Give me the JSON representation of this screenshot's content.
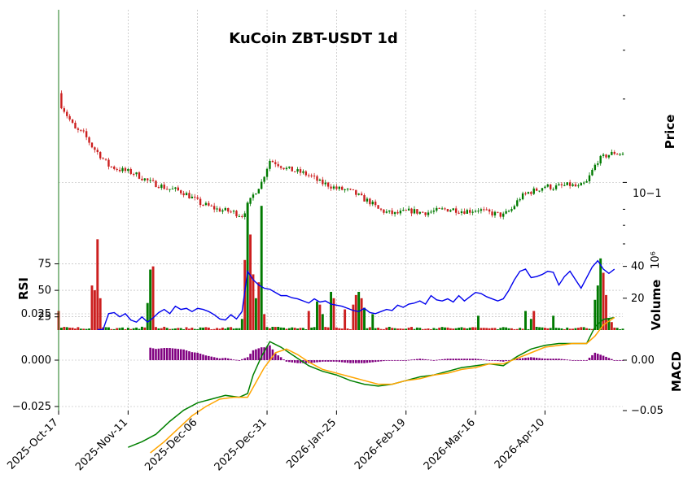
{
  "chart_data": {
    "type": "candlestick",
    "title": "KuCoin ZBT-USDT 1d",
    "x_tick_labels": [
      "2025-Oct-17",
      "2025-Nov-11",
      "2025-Dec-06",
      "2025-Dec-31",
      "2026-Jan-25",
      "2026-Feb-19",
      "2026-Mar-16",
      "2026-Apr-10"
    ],
    "grid": true,
    "panels": {
      "price": {
        "ylabel": "Price",
        "yscale": "log",
        "ytick_label": "10−1",
        "anchors": [
          [
            0,
            0.21
          ],
          [
            1,
            0.19
          ],
          [
            3,
            0.175
          ],
          [
            6,
            0.155
          ],
          [
            9,
            0.15
          ],
          [
            12,
            0.135
          ],
          [
            15,
            0.125
          ],
          [
            18,
            0.115
          ],
          [
            21,
            0.112
          ],
          [
            24,
            0.11
          ],
          [
            27,
            0.108
          ],
          [
            30,
            0.104
          ],
          [
            33,
            0.1
          ],
          [
            36,
            0.098
          ],
          [
            39,
            0.095
          ],
          [
            42,
            0.094
          ],
          [
            45,
            0.092
          ],
          [
            48,
            0.088
          ],
          [
            51,
            0.084
          ],
          [
            54,
            0.082
          ],
          [
            57,
            0.08
          ],
          [
            60,
            0.079
          ],
          [
            63,
            0.078
          ],
          [
            66,
            0.076
          ],
          [
            68,
            0.082
          ],
          [
            70,
            0.09
          ],
          [
            73,
            0.1
          ],
          [
            76,
            0.12
          ],
          [
            78,
            0.118
          ],
          [
            80,
            0.115
          ],
          [
            82,
            0.112
          ],
          [
            85,
            0.11
          ],
          [
            88,
            0.108
          ],
          [
            91,
            0.105
          ],
          [
            94,
            0.1
          ],
          [
            97,
            0.098
          ],
          [
            100,
            0.095
          ],
          [
            103,
            0.094
          ],
          [
            106,
            0.092
          ],
          [
            109,
            0.088
          ],
          [
            112,
            0.085
          ],
          [
            115,
            0.08
          ],
          [
            118,
            0.078
          ],
          [
            121,
            0.077
          ],
          [
            124,
            0.078
          ],
          [
            127,
            0.079
          ],
          [
            130,
            0.078
          ],
          [
            133,
            0.078
          ],
          [
            136,
            0.079
          ],
          [
            139,
            0.08
          ],
          [
            142,
            0.08
          ],
          [
            145,
            0.079
          ],
          [
            148,
            0.079
          ],
          [
            151,
            0.08
          ],
          [
            154,
            0.078
          ],
          [
            157,
            0.077
          ],
          [
            160,
            0.076
          ],
          [
            163,
            0.08
          ],
          [
            166,
            0.088
          ],
          [
            169,
            0.092
          ],
          [
            172,
            0.094
          ],
          [
            175,
            0.097
          ],
          [
            178,
            0.096
          ],
          [
            181,
            0.097
          ],
          [
            184,
            0.098
          ],
          [
            187,
            0.096
          ],
          [
            190,
            0.1
          ],
          [
            192,
            0.11
          ],
          [
            194,
            0.12
          ],
          [
            197,
            0.125
          ],
          [
            200,
            0.128
          ],
          [
            203,
            0.127
          ]
        ]
      },
      "volume": {
        "ylabel": "Volume",
        "ylabel_exponent": "10⁶",
        "yticks": [
          20,
          40
        ],
        "spikes": [
          [
            0,
            12,
            "red"
          ],
          [
            12,
            28,
            "red"
          ],
          [
            13,
            25,
            "red"
          ],
          [
            14,
            57,
            "red"
          ],
          [
            15,
            20,
            "red"
          ],
          [
            32,
            17,
            "green"
          ],
          [
            33,
            38,
            "green"
          ],
          [
            34,
            40,
            "red"
          ],
          [
            66,
            7,
            "green"
          ],
          [
            67,
            44,
            "red"
          ],
          [
            68,
            80,
            "green"
          ],
          [
            69,
            60,
            "red"
          ],
          [
            70,
            35,
            "red"
          ],
          [
            71,
            20,
            "green"
          ],
          [
            72,
            30,
            "red"
          ],
          [
            73,
            78,
            "green"
          ],
          [
            74,
            10,
            "red"
          ],
          [
            90,
            12,
            "red"
          ],
          [
            93,
            18,
            "green"
          ],
          [
            94,
            16,
            "red"
          ],
          [
            95,
            10,
            "green"
          ],
          [
            98,
            24,
            "green"
          ],
          [
            99,
            20,
            "red"
          ],
          [
            103,
            13,
            "red"
          ],
          [
            106,
            16,
            "red"
          ],
          [
            107,
            22,
            "red"
          ],
          [
            108,
            24,
            "green"
          ],
          [
            109,
            20,
            "red"
          ],
          [
            110,
            14,
            "green"
          ],
          [
            113,
            10,
            "green"
          ],
          [
            151,
            9,
            "green"
          ],
          [
            168,
            12,
            "green"
          ],
          [
            170,
            7,
            "green"
          ],
          [
            171,
            12,
            "red"
          ],
          [
            178,
            9,
            "green"
          ],
          [
            193,
            19,
            "green"
          ],
          [
            194,
            28,
            "green"
          ],
          [
            195,
            45,
            "green"
          ],
          [
            196,
            36,
            "red"
          ],
          [
            197,
            22,
            "red"
          ],
          [
            198,
            7,
            "green"
          ],
          [
            199,
            5,
            "red"
          ]
        ]
      },
      "rsi": {
        "ylabel": "RSI",
        "yticks": [
          25,
          50,
          75
        ],
        "series": [
          [
            14,
            13
          ],
          [
            16,
            13
          ],
          [
            18,
            28
          ],
          [
            20,
            29
          ],
          [
            22,
            25
          ],
          [
            24,
            28
          ],
          [
            26,
            22
          ],
          [
            28,
            20
          ],
          [
            30,
            25
          ],
          [
            32,
            20
          ],
          [
            34,
            24
          ],
          [
            36,
            29
          ],
          [
            38,
            32
          ],
          [
            40,
            28
          ],
          [
            42,
            35
          ],
          [
            44,
            32
          ],
          [
            46,
            33
          ],
          [
            48,
            30
          ],
          [
            50,
            33
          ],
          [
            52,
            32
          ],
          [
            54,
            30
          ],
          [
            56,
            27
          ],
          [
            58,
            23
          ],
          [
            60,
            22
          ],
          [
            62,
            27
          ],
          [
            64,
            23
          ],
          [
            66,
            30
          ],
          [
            68,
            68
          ],
          [
            70,
            60
          ],
          [
            72,
            55
          ],
          [
            74,
            52
          ],
          [
            76,
            51
          ],
          [
            78,
            48
          ],
          [
            80,
            45
          ],
          [
            82,
            45
          ],
          [
            84,
            43
          ],
          [
            86,
            42
          ],
          [
            88,
            40
          ],
          [
            90,
            38
          ],
          [
            92,
            42
          ],
          [
            94,
            39
          ],
          [
            96,
            40
          ],
          [
            98,
            37
          ],
          [
            100,
            36
          ],
          [
            102,
            35
          ],
          [
            104,
            33
          ],
          [
            106,
            31
          ],
          [
            108,
            30
          ],
          [
            110,
            33
          ],
          [
            112,
            29
          ],
          [
            114,
            28
          ],
          [
            116,
            30
          ],
          [
            118,
            32
          ],
          [
            120,
            31
          ],
          [
            122,
            36
          ],
          [
            124,
            34
          ],
          [
            126,
            37
          ],
          [
            128,
            38
          ],
          [
            130,
            40
          ],
          [
            132,
            37
          ],
          [
            134,
            45
          ],
          [
            136,
            41
          ],
          [
            138,
            40
          ],
          [
            140,
            42
          ],
          [
            142,
            39
          ],
          [
            144,
            45
          ],
          [
            146,
            40
          ],
          [
            148,
            44
          ],
          [
            150,
            48
          ],
          [
            152,
            47
          ],
          [
            154,
            44
          ],
          [
            156,
            42
          ],
          [
            158,
            40
          ],
          [
            160,
            42
          ],
          [
            162,
            50
          ],
          [
            164,
            60
          ],
          [
            166,
            68
          ],
          [
            168,
            70
          ],
          [
            170,
            62
          ],
          [
            172,
            63
          ],
          [
            174,
            65
          ],
          [
            176,
            68
          ],
          [
            178,
            67
          ],
          [
            180,
            55
          ],
          [
            182,
            63
          ],
          [
            184,
            68
          ],
          [
            186,
            60
          ],
          [
            188,
            52
          ],
          [
            190,
            62
          ],
          [
            192,
            72
          ],
          [
            194,
            78
          ],
          [
            196,
            70
          ],
          [
            198,
            66
          ],
          [
            200,
            70
          ]
        ]
      },
      "macd": {
        "ylabel": "MACD",
        "yticks_left": [
          "0.025",
          "0.000",
          "−0.025"
        ],
        "yticks_right": [
          "0.00",
          "−0.05"
        ],
        "macd_line": [
          [
            25,
            -0.047
          ],
          [
            30,
            -0.044
          ],
          [
            35,
            -0.04
          ],
          [
            40,
            -0.033
          ],
          [
            45,
            -0.027
          ],
          [
            50,
            -0.023
          ],
          [
            55,
            -0.021
          ],
          [
            60,
            -0.019
          ],
          [
            65,
            -0.02
          ],
          [
            68,
            -0.018
          ],
          [
            70,
            -0.008
          ],
          [
            73,
            0.002
          ],
          [
            76,
            0.01
          ],
          [
            80,
            0.007
          ],
          [
            85,
            0.002
          ],
          [
            90,
            -0.003
          ],
          [
            95,
            -0.006
          ],
          [
            100,
            -0.008
          ],
          [
            105,
            -0.011
          ],
          [
            110,
            -0.013
          ],
          [
            115,
            -0.014
          ],
          [
            120,
            -0.013
          ],
          [
            125,
            -0.011
          ],
          [
            130,
            -0.009
          ],
          [
            135,
            -0.008
          ],
          [
            140,
            -0.006
          ],
          [
            145,
            -0.004
          ],
          [
            150,
            -0.003
          ],
          [
            155,
            -0.002
          ],
          [
            160,
            -0.003
          ],
          [
            165,
            0.002
          ],
          [
            170,
            0.006
          ],
          [
            175,
            0.008
          ],
          [
            180,
            0.009
          ],
          [
            185,
            0.009
          ],
          [
            190,
            0.009
          ],
          [
            193,
            0.018
          ],
          [
            196,
            0.022
          ],
          [
            200,
            0.023
          ]
        ],
        "signal_line": [
          [
            33,
            -0.05
          ],
          [
            38,
            -0.044
          ],
          [
            43,
            -0.037
          ],
          [
            48,
            -0.03
          ],
          [
            53,
            -0.025
          ],
          [
            58,
            -0.021
          ],
          [
            63,
            -0.02
          ],
          [
            68,
            -0.02
          ],
          [
            71,
            -0.012
          ],
          [
            74,
            -0.004
          ],
          [
            78,
            0.004
          ],
          [
            82,
            0.006
          ],
          [
            86,
            0.003
          ],
          [
            90,
            -0.001
          ],
          [
            95,
            -0.005
          ],
          [
            100,
            -0.007
          ],
          [
            105,
            -0.009
          ],
          [
            110,
            -0.011
          ],
          [
            115,
            -0.013
          ],
          [
            120,
            -0.013
          ],
          [
            125,
            -0.011
          ],
          [
            130,
            -0.01
          ],
          [
            135,
            -0.008
          ],
          [
            140,
            -0.007
          ],
          [
            145,
            -0.005
          ],
          [
            150,
            -0.004
          ],
          [
            155,
            -0.002
          ],
          [
            160,
            -0.002
          ],
          [
            165,
            0.001
          ],
          [
            170,
            0.004
          ],
          [
            175,
            0.007
          ],
          [
            180,
            0.008
          ],
          [
            185,
            0.009
          ],
          [
            190,
            0.009
          ],
          [
            193,
            0.013
          ],
          [
            196,
            0.019
          ],
          [
            200,
            0.023
          ]
        ],
        "histogram_color": "purple"
      }
    }
  },
  "colors": {
    "up": "#007a00",
    "down": "#cc1f1f",
    "rsi_line": "#0000ee",
    "macd_line": "#008000",
    "signal_line": "#ffa500",
    "histogram": "#800080",
    "grid": "#b0b0b0"
  }
}
